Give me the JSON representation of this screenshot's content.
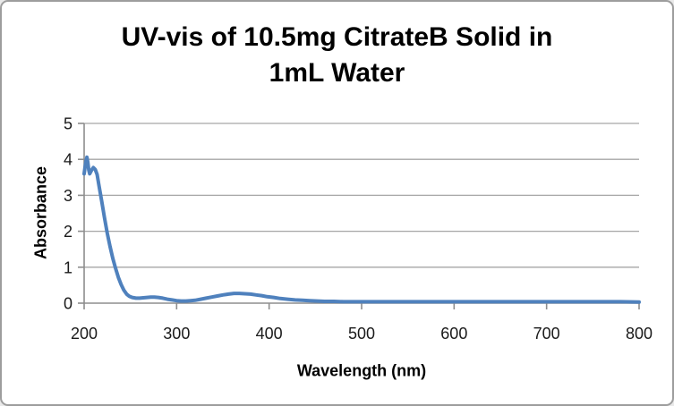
{
  "window": {
    "background": "#ffffff",
    "border_color": "#9d9d9d"
  },
  "chart_data": {
    "type": "line",
    "title": "UV-vis of 10.5mg CitrateB Solid in 1mL Water",
    "title_lines": [
      "UV-vis of 10.5mg CitrateB Solid in",
      "1mL Water"
    ],
    "xlabel": "Wavelength (nm)",
    "ylabel": "Absorbance",
    "xlim": [
      200,
      800
    ],
    "ylim": [
      0,
      5
    ],
    "x_ticks": [
      200,
      300,
      400,
      500,
      600,
      700,
      800
    ],
    "y_ticks": [
      0,
      1,
      2,
      3,
      4,
      5
    ],
    "grid": "horizontal-major",
    "legend_position": "none",
    "styles": {
      "line_color": "#4f81bd",
      "line_width": 4,
      "grid_color": "#a6a6a6",
      "axis_color": "#8e8e8e",
      "tick_label_color": "#1a1a1a"
    },
    "series": [
      {
        "name": "Absorbance",
        "points": [
          [
            200,
            3.6
          ],
          [
            201,
            3.78
          ],
          [
            202,
            3.96
          ],
          [
            203,
            4.06
          ],
          [
            204,
            3.92
          ],
          [
            205,
            3.7
          ],
          [
            206,
            3.6
          ],
          [
            208,
            3.7
          ],
          [
            210,
            3.77
          ],
          [
            212,
            3.72
          ],
          [
            214,
            3.58
          ],
          [
            216,
            3.28
          ],
          [
            219,
            2.84
          ],
          [
            222,
            2.38
          ],
          [
            225,
            1.95
          ],
          [
            228,
            1.58
          ],
          [
            231,
            1.25
          ],
          [
            234,
            0.97
          ],
          [
            237,
            0.72
          ],
          [
            240,
            0.52
          ],
          [
            243,
            0.36
          ],
          [
            246,
            0.25
          ],
          [
            249,
            0.19
          ],
          [
            252,
            0.16
          ],
          [
            256,
            0.14
          ],
          [
            260,
            0.14
          ],
          [
            264,
            0.15
          ],
          [
            268,
            0.16
          ],
          [
            272,
            0.17
          ],
          [
            276,
            0.17
          ],
          [
            280,
            0.16
          ],
          [
            285,
            0.14
          ],
          [
            290,
            0.11
          ],
          [
            295,
            0.09
          ],
          [
            300,
            0.07
          ],
          [
            305,
            0.06
          ],
          [
            310,
            0.06
          ],
          [
            315,
            0.07
          ],
          [
            320,
            0.08
          ],
          [
            326,
            0.11
          ],
          [
            332,
            0.14
          ],
          [
            338,
            0.17
          ],
          [
            344,
            0.2
          ],
          [
            350,
            0.23
          ],
          [
            356,
            0.25
          ],
          [
            362,
            0.27
          ],
          [
            368,
            0.27
          ],
          [
            374,
            0.26
          ],
          [
            380,
            0.25
          ],
          [
            386,
            0.23
          ],
          [
            392,
            0.21
          ],
          [
            398,
            0.18
          ],
          [
            405,
            0.16
          ],
          [
            412,
            0.13
          ],
          [
            420,
            0.11
          ],
          [
            428,
            0.09
          ],
          [
            436,
            0.08
          ],
          [
            444,
            0.07
          ],
          [
            452,
            0.06
          ],
          [
            460,
            0.05
          ],
          [
            470,
            0.05
          ],
          [
            480,
            0.04
          ],
          [
            490,
            0.04
          ],
          [
            500,
            0.04
          ],
          [
            520,
            0.04
          ],
          [
            540,
            0.04
          ],
          [
            560,
            0.04
          ],
          [
            580,
            0.04
          ],
          [
            600,
            0.04
          ],
          [
            620,
            0.04
          ],
          [
            640,
            0.04
          ],
          [
            660,
            0.04
          ],
          [
            680,
            0.04
          ],
          [
            700,
            0.04
          ],
          [
            720,
            0.04
          ],
          [
            740,
            0.04
          ],
          [
            760,
            0.04
          ],
          [
            780,
            0.04
          ],
          [
            800,
            0.03
          ]
        ]
      }
    ]
  }
}
